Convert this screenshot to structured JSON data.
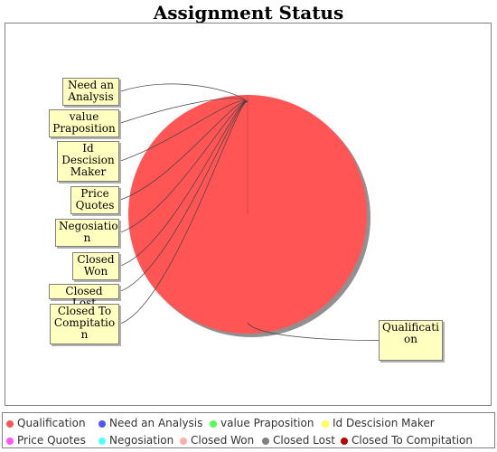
{
  "chart_data": {
    "type": "pie",
    "title": "Assignment Status",
    "categories": [
      "Qualification",
      "Need an Analysis",
      "value Praposition",
      "Id Descision Maker",
      "Price Quotes",
      "Negosiation",
      "Closed Won",
      "Closed Lost",
      "Closed To Compitation"
    ],
    "values": [
      100,
      0,
      0,
      0,
      0,
      0,
      0,
      0,
      0
    ],
    "colors": [
      "#ff5555",
      "#5555ff",
      "#55ff55",
      "#ffff55",
      "#ff55ff",
      "#55ffff",
      "#ffafaf",
      "#808080",
      "#c00000"
    ],
    "callout_labels": [
      "Qualificati\non",
      "Need an\nAnalysis",
      "value\nPraposition",
      "Id\nDescision\nMaker",
      "Price\nQuotes",
      "Negosiatio\nn",
      "Closed\nWon",
      "Closed Lost",
      "Closed To\nCompitatio\nn"
    ],
    "legend_position": "bottom"
  }
}
